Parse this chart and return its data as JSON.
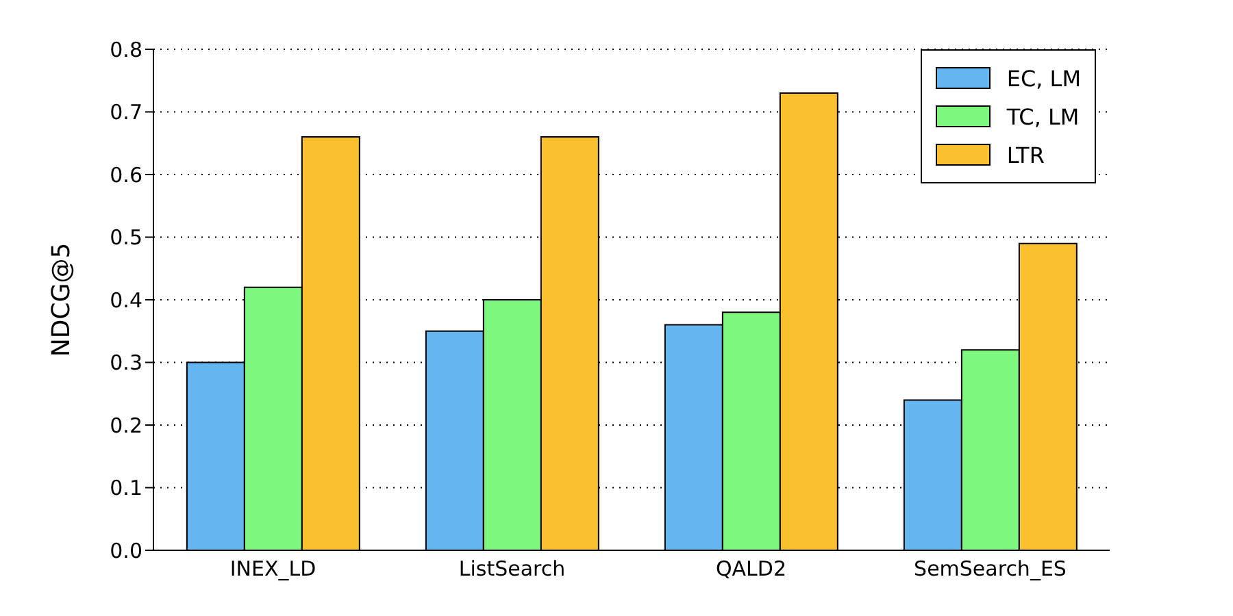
{
  "chart_data": {
    "type": "bar",
    "ylabel": "NDCG@5",
    "categories": [
      "INEX_LD",
      "ListSearch",
      "QALD2",
      "SemSearch_ES"
    ],
    "series": [
      {
        "name": "EC, LM",
        "color": "#64b5f0",
        "values": [
          0.3,
          0.35,
          0.36,
          0.24
        ]
      },
      {
        "name": "TC, LM",
        "color": "#7ef77e",
        "values": [
          0.42,
          0.4,
          0.38,
          0.32
        ]
      },
      {
        "name": "LTR",
        "color": "#fbc02d",
        "values": [
          0.66,
          0.66,
          0.73,
          0.49
        ]
      }
    ],
    "ylim": [
      0,
      0.8
    ],
    "yticks": [
      {
        "value": 0,
        "label": "0.0"
      },
      0.1,
      0.2,
      0.3,
      0.4,
      0.5,
      0.6,
      0.7,
      0.8
    ],
    "grid": "y",
    "legend": "top right"
  }
}
